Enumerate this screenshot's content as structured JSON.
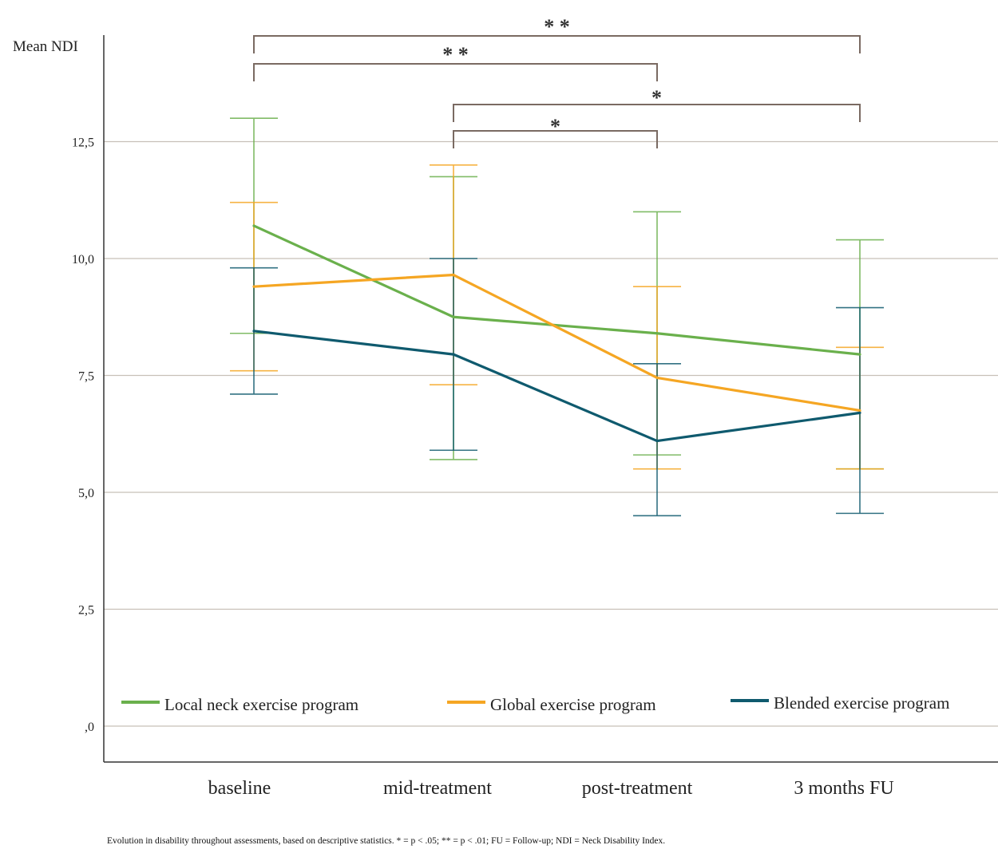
{
  "chart_data": {
    "type": "line",
    "ylabel": "Mean NDI",
    "categories": [
      "baseline",
      "mid-treatment",
      "post-treatment",
      "3 months FU"
    ],
    "ylim": [
      -0.8,
      14.5
    ],
    "yticks": [
      0,
      2.5,
      5,
      7.5,
      10,
      12.5
    ],
    "ytick_labels": [
      ",0",
      "2,5",
      "5,0",
      "7,5",
      "10,0",
      "12,5"
    ],
    "grid": true,
    "legend_position": "bottom",
    "series": [
      {
        "name": "Local neck exercise program",
        "color": "#6ab04c",
        "values": [
          10.7,
          8.75,
          8.4,
          7.95
        ],
        "err_low": [
          8.4,
          5.7,
          5.8,
          5.5
        ],
        "err_high": [
          13.0,
          11.75,
          11.0,
          10.4
        ]
      },
      {
        "name": "Global exercise program",
        "color": "#f5a623",
        "values": [
          9.4,
          9.65,
          7.45,
          6.75
        ],
        "err_low": [
          7.6,
          7.3,
          5.5,
          5.5
        ],
        "err_high": [
          11.2,
          12.0,
          9.4,
          8.1
        ]
      },
      {
        "name": "Blended exercise program",
        "color": "#0f5a6e",
        "values": [
          8.45,
          7.95,
          6.1,
          6.7
        ],
        "err_low": [
          7.1,
          5.9,
          4.5,
          4.55
        ],
        "err_high": [
          9.8,
          10.0,
          7.75,
          8.95
        ]
      }
    ],
    "annotations": [
      {
        "from": 0,
        "to": 3,
        "label": "* *"
      },
      {
        "from": 0,
        "to": 2,
        "label": "* *"
      },
      {
        "from": 1,
        "to": 3,
        "label": "*"
      },
      {
        "from": 1,
        "to": 2,
        "label": "*"
      }
    ]
  },
  "caption": "Evolution in disability throughout assessments, based on descriptive statistics. * = p < .05; ** = p < .01; FU = Follow-up; NDI = Neck Disability Index."
}
